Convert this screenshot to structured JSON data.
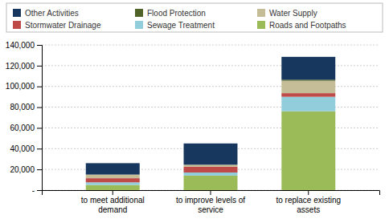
{
  "chart_data": {
    "type": "bar",
    "stacked": true,
    "categories": [
      "to meet additional\ndemand",
      "to improve levels of\nservice",
      "to replace existing\nassets"
    ],
    "series": [
      {
        "name": "Roads and Footpaths",
        "color": "#9BBB59",
        "values": [
          5000,
          14000,
          76000
        ]
      },
      {
        "name": "Sewage Treatment",
        "color": "#92CDDC",
        "values": [
          2500,
          3000,
          14000
        ]
      },
      {
        "name": "Stormwater Drainage",
        "color": "#BE4B48",
        "values": [
          4000,
          5500,
          3500
        ]
      },
      {
        "name": "Water Supply",
        "color": "#C4BD97",
        "values": [
          3500,
          2000,
          12000
        ]
      },
      {
        "name": "Flood Protection",
        "color": "#4F6228",
        "values": [
          0,
          0,
          1000
        ]
      },
      {
        "name": "Other Activities",
        "color": "#17375E",
        "values": [
          11000,
          20500,
          22000
        ]
      }
    ],
    "ylim": [
      0,
      140000
    ],
    "yticks": [
      {
        "value": 0,
        "label": "-"
      },
      {
        "value": 20000,
        "label": "20,000"
      },
      {
        "value": 40000,
        "label": "40,000"
      },
      {
        "value": 60000,
        "label": "60,000"
      },
      {
        "value": 80000,
        "label": "80,000"
      },
      {
        "value": 100000,
        "label": "100,000"
      },
      {
        "value": 120000,
        "label": "120,000"
      },
      {
        "value": 140000,
        "label": "140,000"
      }
    ],
    "grid": true,
    "legend": "top"
  }
}
